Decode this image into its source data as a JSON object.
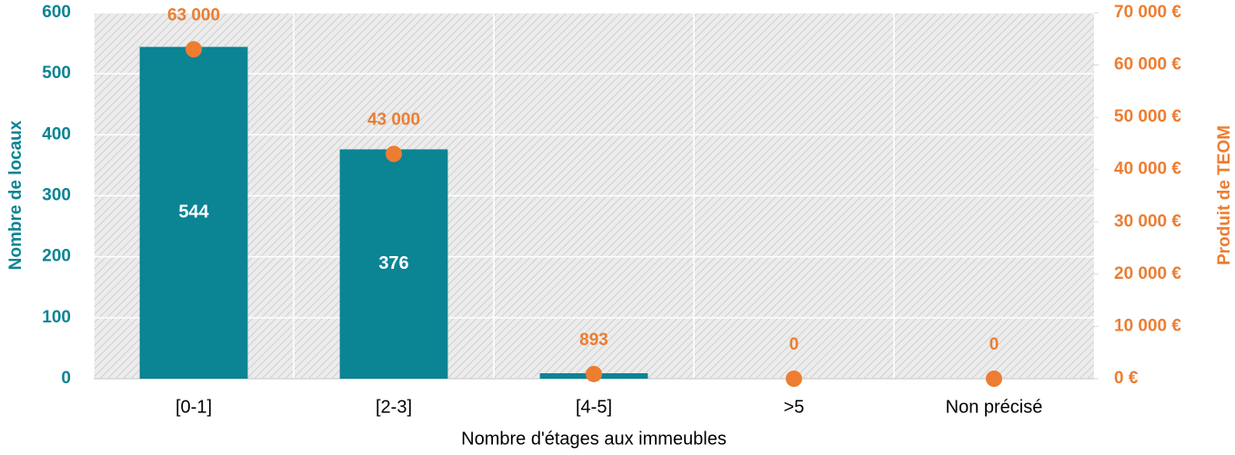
{
  "chart_data": {
    "type": "combo",
    "x_label": "Nombre d'étages aux immeubles",
    "y_label": "Nombre de locaux",
    "y2_label": "Produit de TEOM",
    "categories": [
      "[0-1]",
      "[2-3]",
      "[4-5]",
      ">5",
      "Non précisé"
    ],
    "series": [
      {
        "type": "bar",
        "color": "#0b8494",
        "values": [
          544,
          376,
          9,
          0,
          0
        ]
      },
      {
        "type": "scatter",
        "axis": "y2",
        "color": "#ed7d31",
        "values": [
          63000,
          43000,
          893,
          0,
          0
        ],
        "value_labels": [
          "63 000",
          "43 000",
          "893",
          "0",
          "0"
        ]
      }
    ],
    "ylim": [
      0,
      600
    ],
    "yticks": [
      0,
      100,
      200,
      300,
      400,
      500,
      600
    ],
    "y2lim": [
      0,
      70000
    ],
    "y2ticks": [
      {
        "value": 0,
        "label": "0 €"
      },
      {
        "value": 10000,
        "label": "10 000 €"
      },
      {
        "value": 20000,
        "label": "20 000 €"
      },
      {
        "value": 30000,
        "label": "30 000 €"
      },
      {
        "value": 40000,
        "label": "40 000 €"
      },
      {
        "value": 50000,
        "label": "50 000 €"
      },
      {
        "value": 60000,
        "label": "60 000 €"
      },
      {
        "value": 70000,
        "label": "70 000 €"
      }
    ],
    "grid": true
  }
}
